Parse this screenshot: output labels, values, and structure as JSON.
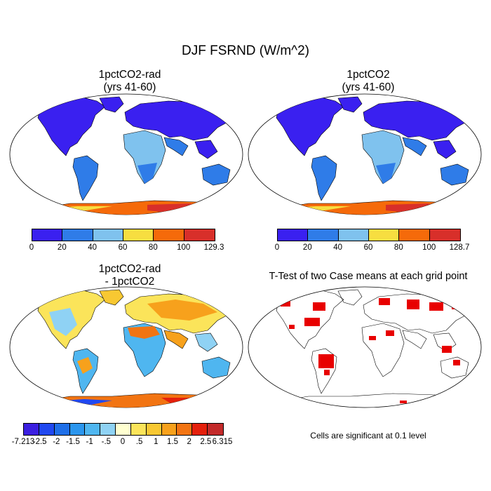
{
  "main_title": "DJF FSRND (W/m^2)",
  "panels": [
    {
      "title_line1": "1pctCO2-rad",
      "title_line2": "(yrs 41-60)"
    },
    {
      "title_line1": "1pctCO2",
      "title_line2": "(yrs 41-60)"
    },
    {
      "title_line1": "1pctCO2-rad",
      "title_line2": "- 1pctCO2"
    },
    {
      "title_line1": "T-Test of two Case means at each grid point"
    }
  ],
  "colorbar1": {
    "labels": [
      "0",
      "20",
      "40",
      "60",
      "80",
      "100",
      "129.3"
    ],
    "colors": [
      "#3a20f0",
      "#2f7ce8",
      "#7fc2ee",
      "#f7de40",
      "#f56a0a",
      "#d82f2a"
    ]
  },
  "colorbar2": {
    "labels": [
      "0",
      "20",
      "40",
      "60",
      "80",
      "100",
      "128.7"
    ],
    "colors": [
      "#3a20f0",
      "#2f7ce8",
      "#7fc2ee",
      "#f7de40",
      "#f56a0a",
      "#d82f2a"
    ]
  },
  "colorbar3": {
    "labels": [
      "-7.213",
      "-2.5",
      "-2",
      "-1.5",
      "-1",
      "-.5",
      "0",
      ".5",
      "1",
      "1.5",
      "2",
      "2.5",
      "6.315"
    ],
    "colors": [
      "#3b1fe0",
      "#2048f0",
      "#1f6fe8",
      "#2b96ee",
      "#4fb6f0",
      "#8fd2f4",
      "#ffffd0",
      "#fbe45a",
      "#f8c832",
      "#f7a11c",
      "#f27412",
      "#e4200c",
      "#c32a2a"
    ]
  },
  "ttest_note": "Cells are significant at 0.1 level",
  "colors": {
    "ocean": "#ffffff",
    "outline": "#000000",
    "significant": "#e80000"
  }
}
